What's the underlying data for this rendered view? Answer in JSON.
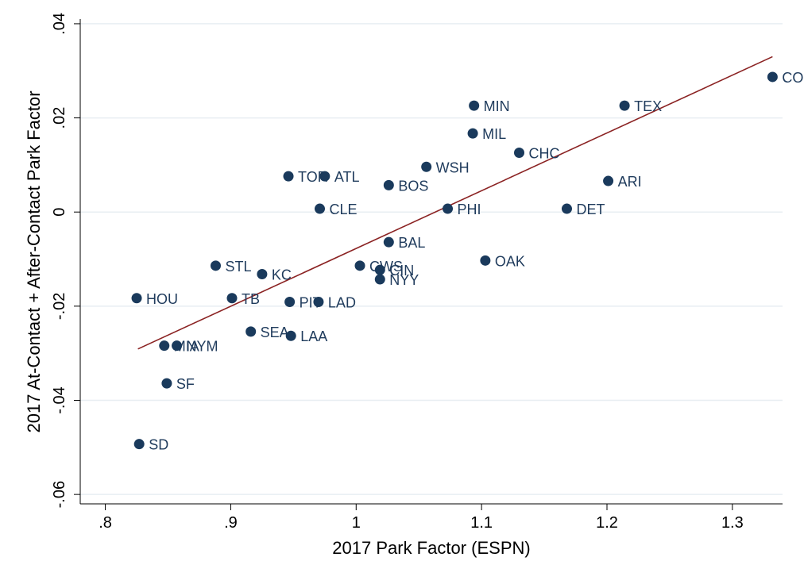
{
  "chart_data": {
    "type": "scatter",
    "xlabel": "2017 Park Factor (ESPN)",
    "ylabel": "2017 At-Contact + After-Contact Park Factor",
    "xlim": [
      0.78,
      1.34
    ],
    "ylim": [
      -0.062,
      0.041
    ],
    "x_ticks": [
      {
        "value": 0.8,
        "label": ".8"
      },
      {
        "value": 0.9,
        "label": ".9"
      },
      {
        "value": 1.0,
        "label": "1"
      },
      {
        "value": 1.1,
        "label": "1.1"
      },
      {
        "value": 1.2,
        "label": "1.2"
      },
      {
        "value": 1.3,
        "label": "1.3"
      }
    ],
    "y_ticks": [
      {
        "value": 0.04,
        "label": ".04"
      },
      {
        "value": 0.02,
        "label": ".02"
      },
      {
        "value": 0.0,
        "label": "0"
      },
      {
        "value": -0.02,
        "label": "-.02"
      },
      {
        "value": -0.04,
        "label": "-.04"
      },
      {
        "value": -0.06,
        "label": "-.06"
      }
    ],
    "grid": true,
    "colors": {
      "marker": "#1a3a5c",
      "fit_line": "#8b2323",
      "grid": "#e8eef2",
      "plot_bg": "#ffffff"
    },
    "points": [
      {
        "label": "COL",
        "x": 1.332,
        "y": 0.0287
      },
      {
        "label": "TEX",
        "x": 1.214,
        "y": 0.0226
      },
      {
        "label": "MIN",
        "x": 1.094,
        "y": 0.0226
      },
      {
        "label": "MIL",
        "x": 1.093,
        "y": 0.0167
      },
      {
        "label": "CHC",
        "x": 1.13,
        "y": 0.0126
      },
      {
        "label": "WSH",
        "x": 1.056,
        "y": 0.0096
      },
      {
        "label": "ARI",
        "x": 1.201,
        "y": 0.0066
      },
      {
        "label": "TOR",
        "x": 0.946,
        "y": 0.0076
      },
      {
        "label": "ATL",
        "x": 0.975,
        "y": 0.0076
      },
      {
        "label": "BOS",
        "x": 1.026,
        "y": 0.0057
      },
      {
        "label": "CLE",
        "x": 0.971,
        "y": 0.0007
      },
      {
        "label": "PHI",
        "x": 1.073,
        "y": 0.0007
      },
      {
        "label": "DET",
        "x": 1.168,
        "y": 0.0007
      },
      {
        "label": "BAL",
        "x": 1.026,
        "y": -0.0064
      },
      {
        "label": "OAK",
        "x": 1.103,
        "y": -0.0103
      },
      {
        "label": "STL",
        "x": 0.888,
        "y": -0.0114
      },
      {
        "label": "KC",
        "x": 0.925,
        "y": -0.0132
      },
      {
        "label": "CWS",
        "x": 1.003,
        "y": -0.0114
      },
      {
        "label": "CIN",
        "x": 1.019,
        "y": -0.0123
      },
      {
        "label": "NYY",
        "x": 1.019,
        "y": -0.0143
      },
      {
        "label": "HOU",
        "x": 0.825,
        "y": -0.0183
      },
      {
        "label": "TB",
        "x": 0.901,
        "y": -0.0183
      },
      {
        "label": "PIT",
        "x": 0.947,
        "y": -0.0191
      },
      {
        "label": "LAD",
        "x": 0.97,
        "y": -0.0191
      },
      {
        "label": "SEA",
        "x": 0.916,
        "y": -0.0254
      },
      {
        "label": "LAA",
        "x": 0.948,
        "y": -0.0263
      },
      {
        "label": "MIA",
        "x": 0.847,
        "y": -0.0284
      },
      {
        "label": "NYM",
        "x": 0.857,
        "y": -0.0284
      },
      {
        "label": "SF",
        "x": 0.849,
        "y": -0.0364
      },
      {
        "label": "SD",
        "x": 0.827,
        "y": -0.0493
      }
    ],
    "fit_line": {
      "x": [
        0.826,
        1.332
      ],
      "y": [
        -0.0291,
        0.033
      ]
    }
  }
}
